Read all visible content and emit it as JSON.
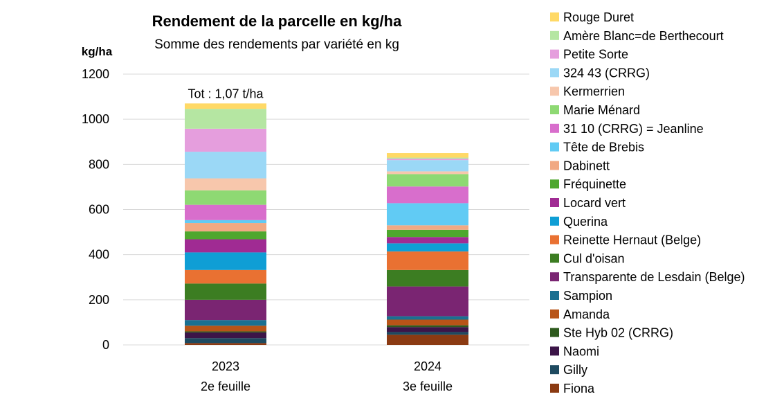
{
  "chart_data": {
    "type": "bar",
    "stacked": true,
    "title": "Rendement de la parcelle en kg/ha",
    "subtitle": "Somme des rendements par variété en kg",
    "ylabel": "kg/ha",
    "ylim": [
      0,
      1200
    ],
    "yticks": [
      "0",
      "200",
      "400",
      "600",
      "800",
      "1000",
      "1200"
    ],
    "categories": [
      "2023",
      "2024"
    ],
    "category_sublabels": [
      "2e feuille",
      "3e feuille"
    ],
    "annotation": {
      "category": "2023",
      "text": "Tot : 1,07 t/ha"
    },
    "legend_position": "right",
    "series": [
      {
        "name": "Fiona",
        "color": "#8B3A12",
        "values": [
          8,
          45
        ]
      },
      {
        "name": "Gilly",
        "color": "#1E4A60",
        "values": [
          22,
          12
        ]
      },
      {
        "name": "Naomi",
        "color": "#3C1548",
        "values": [
          25,
          22
        ]
      },
      {
        "name": "Ste Hyb 02 (CRRG)",
        "color": "#2E5A1E",
        "values": [
          5,
          8
        ]
      },
      {
        "name": "Amanda",
        "color": "#B85418",
        "values": [
          25,
          25
        ]
      },
      {
        "name": "Sampion",
        "color": "#1B7091",
        "values": [
          25,
          15
        ]
      },
      {
        "name": "Transparente de Lesdain (Belge)",
        "color": "#7A2572",
        "values": [
          90,
          132
        ]
      },
      {
        "name": "Cul d'oisan",
        "color": "#3C7D22",
        "values": [
          72,
          73
        ]
      },
      {
        "name": "Reinette Hernaut (Belge)",
        "color": "#E97132",
        "values": [
          60,
          82
        ]
      },
      {
        "name": "Querina",
        "color": "#0F9ED5",
        "values": [
          78,
          36
        ]
      },
      {
        "name": "Locard vert",
        "color": "#A02B93",
        "values": [
          58,
          28
        ]
      },
      {
        "name": "Fréquinette",
        "color": "#4EA72E",
        "values": [
          35,
          32
        ]
      },
      {
        "name": "Dabinett",
        "color": "#F1A983",
        "values": [
          37,
          20
        ]
      },
      {
        "name": "Tête de Brebis",
        "color": "#61CBF4",
        "values": [
          13,
          98
        ]
      },
      {
        "name": "31 10 (CRRG) = Jeanline",
        "color": "#D86ECC",
        "values": [
          68,
          74
        ]
      },
      {
        "name": "Marie Ménard",
        "color": "#8ED973",
        "values": [
          64,
          55
        ]
      },
      {
        "name": "Kermerrien",
        "color": "#F7C7AC",
        "values": [
          53,
          12
        ]
      },
      {
        "name": "324 43 (CRRG)",
        "color": "#9BD8F6",
        "values": [
          118,
          50
        ]
      },
      {
        "name": "Petite Sorte",
        "color": "#E59EDD",
        "values": [
          102,
          6
        ]
      },
      {
        "name": "Amère Blanc=de Berthecourt",
        "color": "#B5E6A2",
        "values": [
          88,
          5
        ]
      },
      {
        "name": "Rouge Duret",
        "color": "#FFD966",
        "values": [
          24,
          20
        ]
      }
    ]
  }
}
